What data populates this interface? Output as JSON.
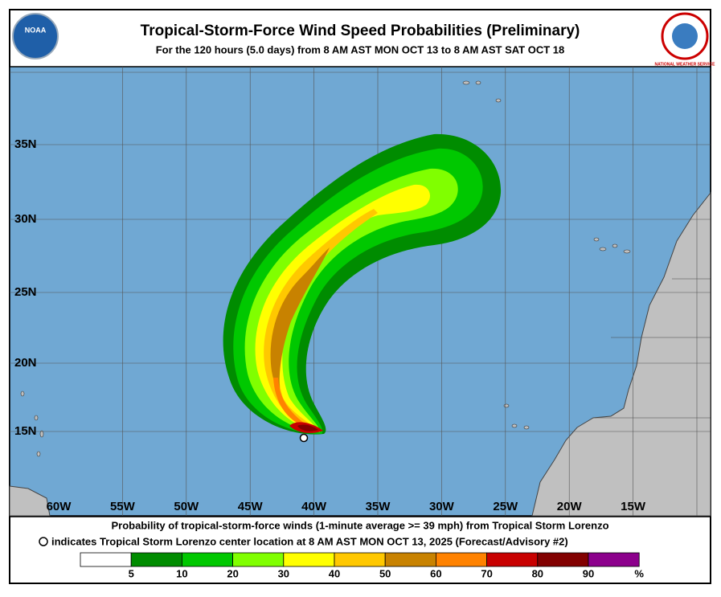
{
  "header": {
    "title": "Tropical-Storm-Force Wind Speed Probabilities (Preliminary)",
    "subtitle": "For the 120 hours (5.0 days) from 8 AM AST MON OCT 13 to 8 AM AST SAT OCT 18",
    "left_logo": "NOAA",
    "right_logo": "NATIONAL WEATHER SERVICE"
  },
  "map": {
    "lat_labels": [
      "35N",
      "30N",
      "25N",
      "20N",
      "15N"
    ],
    "lon_labels": [
      "60W",
      "55W",
      "50W",
      "45W",
      "40W",
      "35W",
      "30W",
      "25W",
      "20W",
      "15W"
    ]
  },
  "caption": {
    "line1": "Probability of tropical-storm-force winds (1-minute average >= 39 mph) from Tropical Storm Lorenzo",
    "line2": "indicates Tropical Storm Lorenzo center location at 8 AM AST MON OCT 13, 2025 (Forecast/Advisory #2)"
  },
  "legend": {
    "colors": [
      "#ffffff",
      "#008c00",
      "#00c800",
      "#80ff00",
      "#ffff00",
      "#ffc800",
      "#c88200",
      "#ff8200",
      "#c80000",
      "#820000",
      "#8c008c"
    ],
    "labels": [
      5,
      10,
      20,
      30,
      40,
      50,
      60,
      70,
      80,
      90
    ],
    "unit": "%"
  }
}
